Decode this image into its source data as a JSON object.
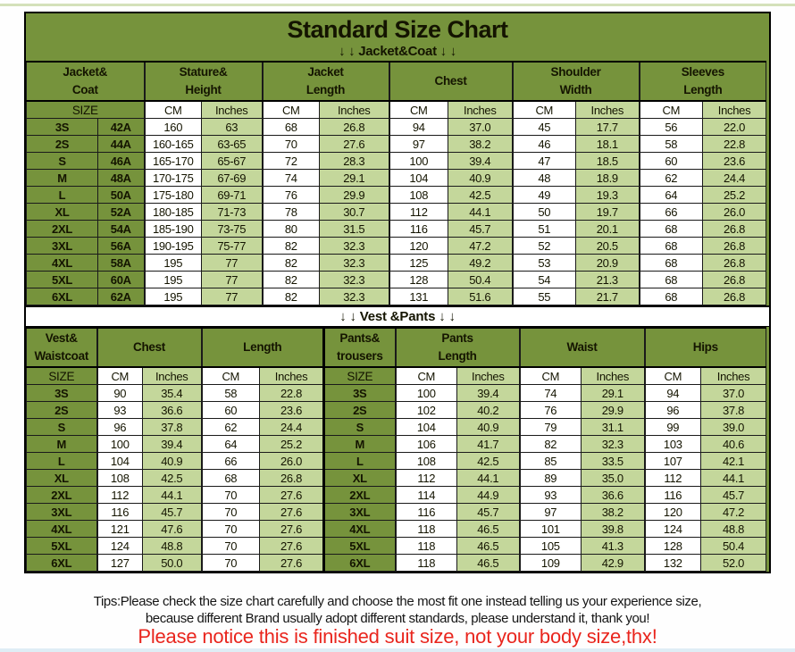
{
  "colors": {
    "olive_green": "#76933c",
    "light_green": "#c4d79b",
    "cell_white": "#ffffff",
    "border_black": "#000000",
    "notice_red": "#e9251d"
  },
  "labels": {
    "size": "SIZE",
    "cm": "CM",
    "inches": "Inches"
  },
  "header": {
    "title": "Standard Size Chart",
    "jacket_section_label": "↓ ↓  Jacket&Coat ↓ ↓"
  },
  "jacket_table": {
    "group_headers": [
      "Jacket&\nCoat",
      "Stature&\nHeight",
      "Jacket\nLength",
      "Chest",
      "Shoulder\nWidth",
      "Sleeves\nLength"
    ],
    "rows": [
      {
        "size": "3S",
        "code": "42A",
        "values": [
          "160",
          "63",
          "68",
          "26.8",
          "94",
          "37.0",
          "45",
          "17.7",
          "56",
          "22.0"
        ]
      },
      {
        "size": "2S",
        "code": "44A",
        "values": [
          "160-165",
          "63-65",
          "70",
          "27.6",
          "97",
          "38.2",
          "46",
          "18.1",
          "58",
          "22.8"
        ]
      },
      {
        "size": "S",
        "code": "46A",
        "values": [
          "165-170",
          "65-67",
          "72",
          "28.3",
          "100",
          "39.4",
          "47",
          "18.5",
          "60",
          "23.6"
        ]
      },
      {
        "size": "M",
        "code": "48A",
        "values": [
          "170-175",
          "67-69",
          "74",
          "29.1",
          "104",
          "40.9",
          "48",
          "18.9",
          "62",
          "24.4"
        ]
      },
      {
        "size": "L",
        "code": "50A",
        "values": [
          "175-180",
          "69-71",
          "76",
          "29.9",
          "108",
          "42.5",
          "49",
          "19.3",
          "64",
          "25.2"
        ]
      },
      {
        "size": "XL",
        "code": "52A",
        "values": [
          "180-185",
          "71-73",
          "78",
          "30.7",
          "112",
          "44.1",
          "50",
          "19.7",
          "66",
          "26.0"
        ]
      },
      {
        "size": "2XL",
        "code": "54A",
        "values": [
          "185-190",
          "73-75",
          "80",
          "31.5",
          "116",
          "45.7",
          "51",
          "20.1",
          "68",
          "26.8"
        ]
      },
      {
        "size": "3XL",
        "code": "56A",
        "values": [
          "190-195",
          "75-77",
          "82",
          "32.3",
          "120",
          "47.2",
          "52",
          "20.5",
          "68",
          "26.8"
        ]
      },
      {
        "size": "4XL",
        "code": "58A",
        "values": [
          "195",
          "77",
          "82",
          "32.3",
          "125",
          "49.2",
          "53",
          "20.9",
          "68",
          "26.8"
        ]
      },
      {
        "size": "5XL",
        "code": "60A",
        "values": [
          "195",
          "77",
          "82",
          "32.3",
          "128",
          "50.4",
          "54",
          "21.3",
          "68",
          "26.8"
        ]
      },
      {
        "size": "6XL",
        "code": "62A",
        "values": [
          "195",
          "77",
          "82",
          "32.3",
          "131",
          "51.6",
          "55",
          "21.7",
          "68",
          "26.8"
        ]
      }
    ]
  },
  "vest_table": {
    "section_label": "↓ ↓  Vest &Pants ↓ ↓",
    "group_headers": [
      "Vest&\nWaistcoat",
      "Chest",
      "Length",
      "Pants&\ntrousers",
      "Pants\nLength",
      "Waist",
      "Hips"
    ],
    "rows": [
      {
        "size": "3S",
        "vest": [
          "90",
          "35.4",
          "58",
          "22.8"
        ],
        "pants_size": "3S",
        "pants": [
          "100",
          "39.4",
          "74",
          "29.1",
          "94",
          "37.0"
        ]
      },
      {
        "size": "2S",
        "vest": [
          "93",
          "36.6",
          "60",
          "23.6"
        ],
        "pants_size": "2S",
        "pants": [
          "102",
          "40.2",
          "76",
          "29.9",
          "96",
          "37.8"
        ]
      },
      {
        "size": "S",
        "vest": [
          "96",
          "37.8",
          "62",
          "24.4"
        ],
        "pants_size": "S",
        "pants": [
          "104",
          "40.9",
          "79",
          "31.1",
          "99",
          "39.0"
        ]
      },
      {
        "size": "M",
        "vest": [
          "100",
          "39.4",
          "64",
          "25.2"
        ],
        "pants_size": "M",
        "pants": [
          "106",
          "41.7",
          "82",
          "32.3",
          "103",
          "40.6"
        ]
      },
      {
        "size": "L",
        "vest": [
          "104",
          "40.9",
          "66",
          "26.0"
        ],
        "pants_size": "L",
        "pants": [
          "108",
          "42.5",
          "85",
          "33.5",
          "107",
          "42.1"
        ]
      },
      {
        "size": "XL",
        "vest": [
          "108",
          "42.5",
          "68",
          "26.8"
        ],
        "pants_size": "XL",
        "pants": [
          "112",
          "44.1",
          "89",
          "35.0",
          "112",
          "44.1"
        ]
      },
      {
        "size": "2XL",
        "vest": [
          "112",
          "44.1",
          "70",
          "27.6"
        ],
        "pants_size": "2XL",
        "pants": [
          "114",
          "44.9",
          "93",
          "36.6",
          "116",
          "45.7"
        ]
      },
      {
        "size": "3XL",
        "vest": [
          "116",
          "45.7",
          "70",
          "27.6"
        ],
        "pants_size": "3XL",
        "pants": [
          "116",
          "45.7",
          "97",
          "38.2",
          "120",
          "47.2"
        ]
      },
      {
        "size": "4XL",
        "vest": [
          "121",
          "47.6",
          "70",
          "27.6"
        ],
        "pants_size": "4XL",
        "pants": [
          "118",
          "46.5",
          "101",
          "39.8",
          "124",
          "48.8"
        ]
      },
      {
        "size": "5XL",
        "vest": [
          "124",
          "48.8",
          "70",
          "27.6"
        ],
        "pants_size": "5XL",
        "pants": [
          "118",
          "46.5",
          "105",
          "41.3",
          "128",
          "50.4"
        ]
      },
      {
        "size": "6XL",
        "vest": [
          "127",
          "50.0",
          "70",
          "27.6"
        ],
        "pants_size": "6XL",
        "pants": [
          "118",
          "46.5",
          "109",
          "42.9",
          "132",
          "52.0"
        ]
      }
    ]
  },
  "footer": {
    "tips_line1": "Tips:Please check the size chart carefully and choose the most fit one instead telling us your experience size,",
    "tips_line2": "because different Brand usually adopt different standards, please understand it, thank you!",
    "notice": "Please notice this is finished suit size, not your body size,thx!"
  }
}
